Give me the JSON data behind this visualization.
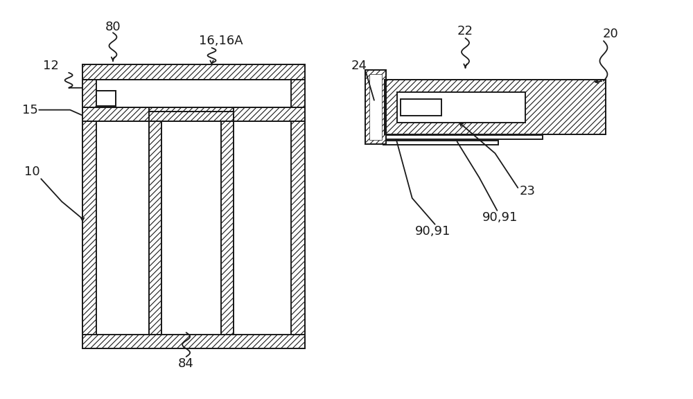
{
  "bg_color": "#ffffff",
  "line_color": "#1a1a1a",
  "figsize": [
    10.0,
    5.76
  ],
  "dpi": 100,
  "lw": 1.4,
  "hatch": "////",
  "fs": 13
}
